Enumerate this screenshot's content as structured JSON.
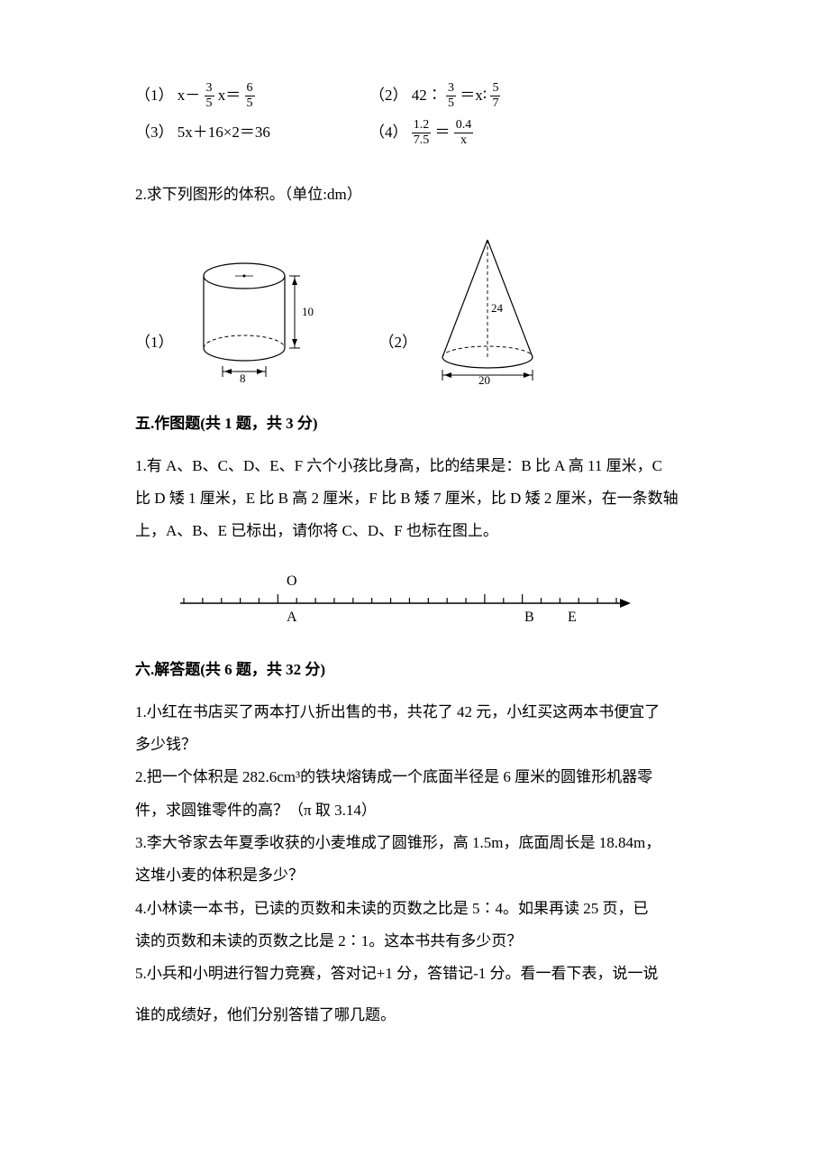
{
  "colors": {
    "text": "#000000",
    "bg": "#ffffff",
    "stroke": "#000000"
  },
  "typography": {
    "body_font": "SimSun / 宋体",
    "body_size_pt": 12,
    "title_weight": "bold"
  },
  "equations": {
    "row1": {
      "left_label": "（1）",
      "left_expr_pre": "x－",
      "left_frac1_num": "3",
      "left_frac1_den": "5",
      "left_expr_mid": " x＝",
      "left_frac2_num": "6",
      "left_frac2_den": "5",
      "right_label": "（2）",
      "right_expr_pre": "42∶",
      "right_frac1_num": "3",
      "right_frac1_den": "5",
      "right_expr_mid": " ＝x∶",
      "right_frac2_num": "5",
      "right_frac2_den": "7"
    },
    "row2": {
      "left_label": "（3）",
      "left_expr": "5x＋16×2＝36",
      "right_label": "（4）",
      "right_frac1_num": "1.2",
      "right_frac1_den": "7.5",
      "right_eq": "＝",
      "right_frac2_num": "0.4",
      "right_frac2_den": "x"
    }
  },
  "q2": {
    "text": "2.求下列图形的体积。（单位:dm）",
    "fig1_label": "（1）",
    "fig2_label": "（2）",
    "cylinder": {
      "height_label": "10",
      "diameter_label": "8"
    },
    "cone": {
      "height_label": "24",
      "diameter_label": "20"
    }
  },
  "section5": {
    "title": "五.作图题(共 1 题，共 3 分)",
    "q1_line1": "1.有 A、B、C、D、E、F 六个小孩比身高，比的结果是：B 比 A 高 11 厘米，C",
    "q1_line2": "比 D 矮 1 厘米，E 比 B 高 2 厘米，F 比 B 矮 7 厘米，比 D 矮 2 厘米，在一条数轴",
    "q1_line3": "上，A、B、E 已标出，请你将 C、D、F 也标在图上。",
    "numberline": {
      "labels": {
        "O": "O",
        "A": "A",
        "B": "B",
        "E": "E"
      },
      "tick_count": 24,
      "O_index": 5,
      "A_index": 5,
      "B_index": 16,
      "E_index": 18
    }
  },
  "section6": {
    "title": "六.解答题(共 6 题，共 32 分)",
    "q1_l1": "1.小红在书店买了两本打八折出售的书，共花了 42 元，小红买这两本书便宜了",
    "q1_l2": "多少钱？",
    "q2_l1": "2.把一个体积是 282.6cm³的铁块熔铸成一个底面半径是 6 厘米的圆锥形机器零",
    "q2_l2": "件，求圆锥零件的高？（π 取 3.14）",
    "q3_l1": "3.李大爷家去年夏季收获的小麦堆成了圆锥形，高 1.5m，底面周长是 18.84m，",
    "q3_l2": "这堆小麦的体积是多少？",
    "q4_l1": "4.小林读一本书，已读的页数和未读的页数之比是 5∶4。如果再读 25 页，已",
    "q4_l2": "读的页数和未读的页数之比是 2∶1。这本书共有多少页？",
    "q5_l1": "5.小兵和小明进行智力竞赛，答对记+1 分，答错记-1 分。看一看下表，说一说",
    "q5_l2": "谁的成绩好，他们分别答错了哪几题。"
  }
}
